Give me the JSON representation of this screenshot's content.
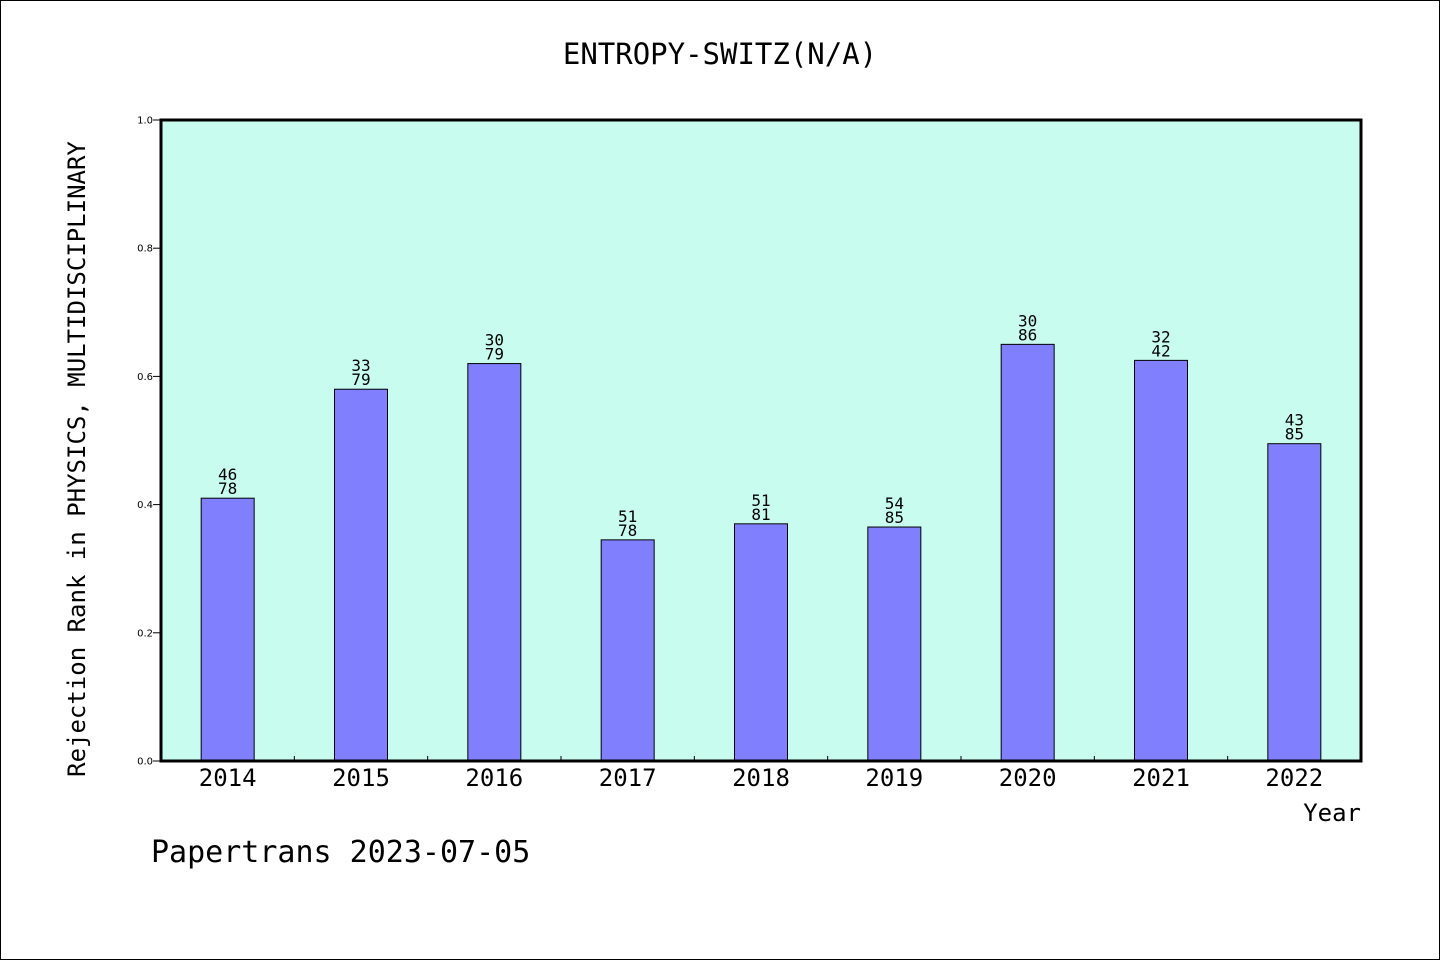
{
  "chart_data": {
    "type": "bar",
    "title": "ENTROPY-SWITZ(N/A)",
    "xlabel": "Year",
    "ylabel": "Rejection Rank in PHYSICS, MULTIDISCIPLINARY",
    "categories": [
      "2014",
      "2015",
      "2016",
      "2017",
      "2018",
      "2019",
      "2020",
      "2021",
      "2022"
    ],
    "values": [
      0.41,
      0.58,
      0.62,
      0.345,
      0.37,
      0.365,
      0.65,
      0.625,
      0.495
    ],
    "bar_labels": [
      [
        "46",
        "78"
      ],
      [
        "33",
        "79"
      ],
      [
        "30",
        "79"
      ],
      [
        "51",
        "78"
      ],
      [
        "51",
        "81"
      ],
      [
        "54",
        "85"
      ],
      [
        "30",
        "86"
      ],
      [
        "32",
        "42"
      ],
      [
        "43",
        "85"
      ]
    ],
    "ylim": [
      0,
      1.0
    ],
    "yticks": [
      "0.0",
      "0.2",
      "0.4",
      "0.6",
      "0.8",
      "1.0"
    ],
    "grid": false,
    "colors": {
      "plot_background": "#c8fcef",
      "bar": "#8080ff",
      "bar_edge": "#000000"
    }
  },
  "footer": "Papertrans 2023-07-05"
}
